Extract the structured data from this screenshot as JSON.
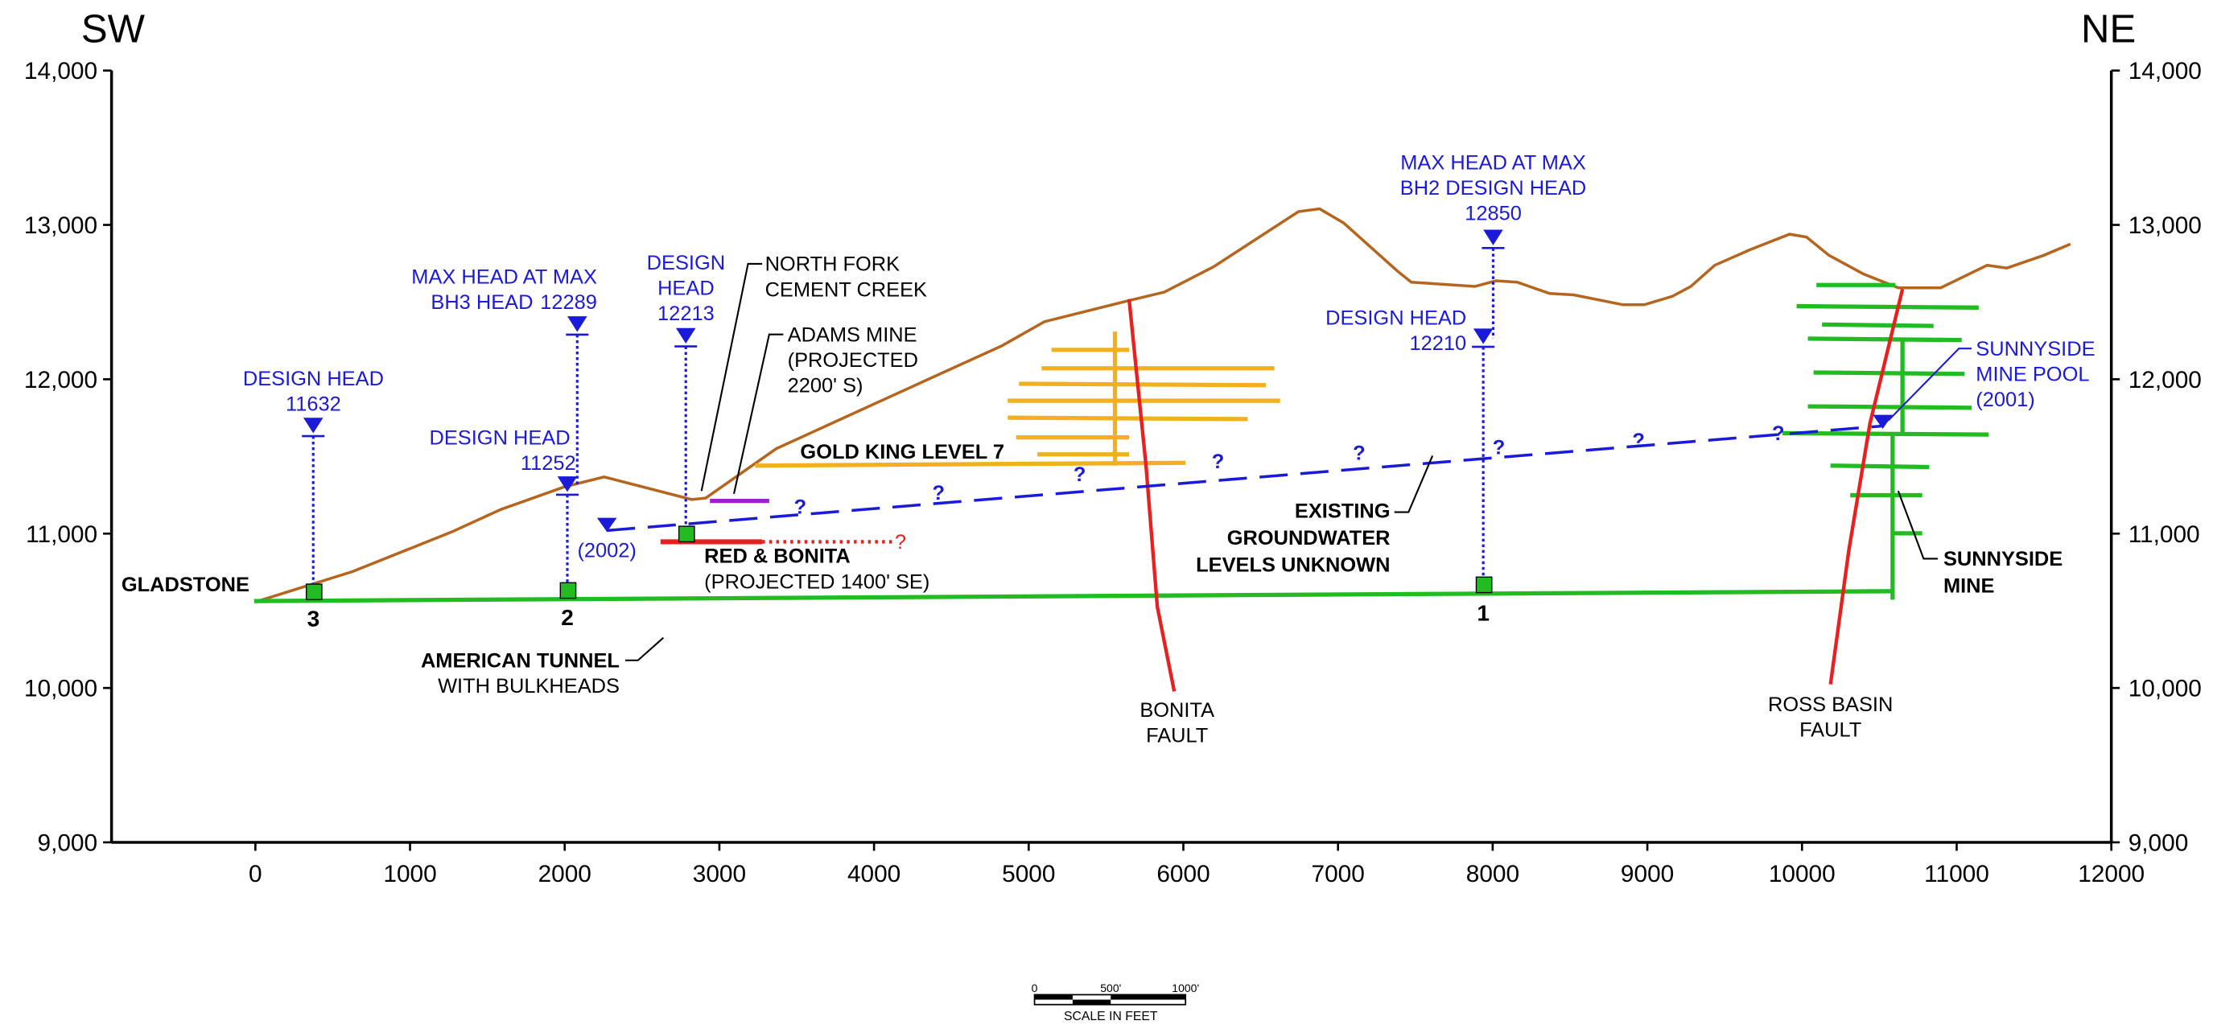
{
  "corners": {
    "left": "SW",
    "right": "NE"
  },
  "axes": {
    "xlim": [
      -930,
      12000
    ],
    "xticks": [
      0,
      1000,
      2000,
      3000,
      4000,
      5000,
      6000,
      7000,
      8000,
      9000,
      10000,
      11000,
      12000
    ],
    "ylim": [
      9000,
      14000
    ],
    "yticks": [
      {
        "value": 9000,
        "label": "9,000"
      },
      {
        "value": 10000,
        "label": "10,000"
      },
      {
        "value": 11000,
        "label": "11,000"
      },
      {
        "value": 12000,
        "label": "12,000"
      },
      {
        "value": 13000,
        "label": "13,000"
      },
      {
        "value": 14000,
        "label": "14,000"
      }
    ]
  },
  "heads": [
    {
      "lines": [
        "DESIGN HEAD"
      ],
      "value": 11632,
      "x": 374
    },
    {
      "lines": [
        "DESIGN HEAD"
      ],
      "value": 11252,
      "x": 2017
    },
    {
      "lines": [
        "MAX HEAD AT MAX",
        "BH3 HEAD"
      ],
      "value": 12289,
      "x": 2081
    },
    {
      "lines": [
        "DESIGN",
        "HEAD"
      ],
      "value": 12213,
      "x": 2783
    },
    {
      "lines": [
        "DESIGN HEAD"
      ],
      "value": 12210,
      "x": 7939
    },
    {
      "lines": [
        "MAX HEAD AT MAX",
        "BH2 DESIGN HEAD"
      ],
      "value": 12850,
      "x": 8003
    }
  ],
  "boreholes": [
    "3",
    "2",
    "1"
  ],
  "labels": {
    "gladstone": "GLADSTONE",
    "american_tunnel": [
      "AMERICAN TUNNEL",
      "WITH BULKHEADS"
    ],
    "north_fork": [
      "NORTH FORK",
      "CEMENT CREEK"
    ],
    "adams": [
      "ADAMS MINE",
      "(PROJECTED",
      "2200' S)"
    ],
    "gold_king": "GOLD KING LEVEL 7",
    "red_bonita": [
      "RED & BONITA",
      "(PROJECTED 1400' SE)"
    ],
    "year": "(2002)",
    "question": "?",
    "existing": [
      "EXISTING",
      "GROUNDWATER",
      "LEVELS UNKNOWN"
    ],
    "bonita_fault": [
      "BONITA",
      "FAULT"
    ],
    "ross_basin": [
      "ROSS BASIN",
      "FAULT"
    ],
    "sunnyside_pool": [
      "SUNNYSIDE",
      "MINE POOL",
      "(2001)"
    ],
    "sunnyside_mine": [
      "SUNNYSIDE",
      "MINE"
    ]
  },
  "scale": {
    "zero": "0",
    "mid": "500'",
    "end": "1000'",
    "caption": "SCALE IN FEET"
  }
}
